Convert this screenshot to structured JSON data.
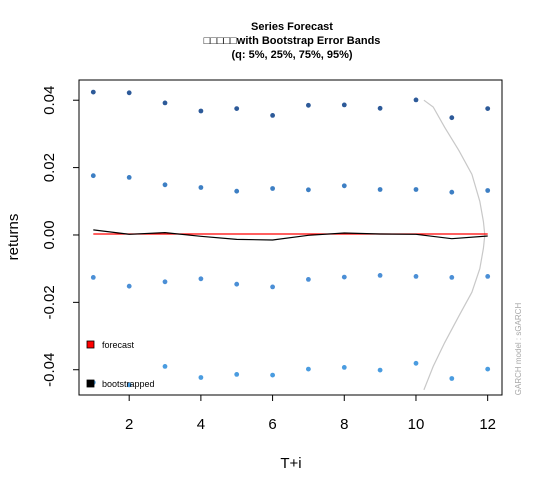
{
  "chart_data": {
    "type": "scatter",
    "title": "Series Forecast",
    "subtitle": "□□□□□with Bootstrap Error Bands",
    "subtitle2": "(q: 5%, 25%, 75%, 95%)",
    "xlabel": "T+i",
    "ylabel": "returns",
    "xlim": [
      0.6,
      12.4
    ],
    "ylim": [
      -0.0475,
      0.046
    ],
    "x_ticks": [
      2,
      4,
      6,
      8,
      10,
      12
    ],
    "x_tick_labels": [
      "2",
      "4",
      "6",
      "8",
      "10",
      "12"
    ],
    "y_ticks": [
      -0.04,
      -0.02,
      0.0,
      0.02,
      0.04
    ],
    "y_tick_labels": [
      "-0.04",
      "-0.02",
      "0.00",
      "0.02",
      "0.04"
    ],
    "grid": false,
    "legend_position": "bottom-left",
    "credit": "GARCH model : sGARCH",
    "colors": {
      "q95": "#2d5a99",
      "q75": "#3d7fc4",
      "q25": "#4b8fd6",
      "q5": "#4a9ce0",
      "forecast": "#ff0000",
      "bootstrapped": "#000000",
      "density": "#c8c8c8",
      "credit": "#a8a8a8"
    },
    "x": [
      1,
      2,
      3,
      4,
      5,
      6,
      7,
      8,
      9,
      10,
      11,
      12
    ],
    "series": [
      {
        "key": "q95",
        "values": [
          0.0424,
          0.0422,
          0.0392,
          0.0368,
          0.0375,
          0.0355,
          0.0385,
          0.0386,
          0.0376,
          0.0401,
          0.0348,
          0.0375
        ]
      },
      {
        "key": "q75",
        "values": [
          0.0176,
          0.0171,
          0.0149,
          0.0141,
          0.013,
          0.0138,
          0.0134,
          0.0146,
          0.0135,
          0.0135,
          0.0127,
          0.0132
        ]
      },
      {
        "key": "q25",
        "values": [
          -0.0126,
          -0.0152,
          -0.0139,
          -0.013,
          -0.0146,
          -0.0154,
          -0.0132,
          -0.0125,
          -0.012,
          -0.0123,
          -0.0126,
          -0.0123
        ]
      },
      {
        "key": "q5",
        "values": [
          -0.0438,
          -0.0445,
          -0.039,
          -0.0423,
          -0.0414,
          -0.0416,
          -0.0398,
          -0.0393,
          -0.0401,
          -0.0381,
          -0.0426,
          -0.0398
        ]
      }
    ],
    "forecast": [
      0.0003,
      0.0003,
      0.0003,
      0.0003,
      0.0003,
      0.0003,
      0.0003,
      0.0003,
      0.0003,
      0.0003,
      0.0003,
      0.0003
    ],
    "bootstrapped": [
      0.0015,
      0.0002,
      0.0007,
      -0.0004,
      -0.0013,
      -0.0015,
      -0.0001,
      0.0006,
      0.0003,
      0.0002,
      -0.0011,
      -0.0003
    ],
    "density_profile": [
      [
        0.05,
        0.04
      ],
      [
        0.7,
        0.038
      ],
      [
        1.5,
        0.032
      ],
      [
        2.5,
        0.025
      ],
      [
        3.4,
        0.018
      ],
      [
        3.95,
        0.01
      ],
      [
        4.2,
        0.004
      ],
      [
        4.3,
        0.0
      ],
      [
        4.2,
        -0.004
      ],
      [
        3.95,
        -0.01
      ],
      [
        3.4,
        -0.017
      ],
      [
        2.5,
        -0.024
      ],
      [
        1.5,
        -0.032
      ],
      [
        0.7,
        -0.039
      ],
      [
        0.05,
        -0.046
      ]
    ],
    "density_baseline_x": 10.2,
    "density_scale": 0.4,
    "legend": [
      {
        "label": "forecast",
        "color": "#ff0000"
      },
      {
        "label": "bootstrapped",
        "color": "#000000"
      }
    ]
  }
}
